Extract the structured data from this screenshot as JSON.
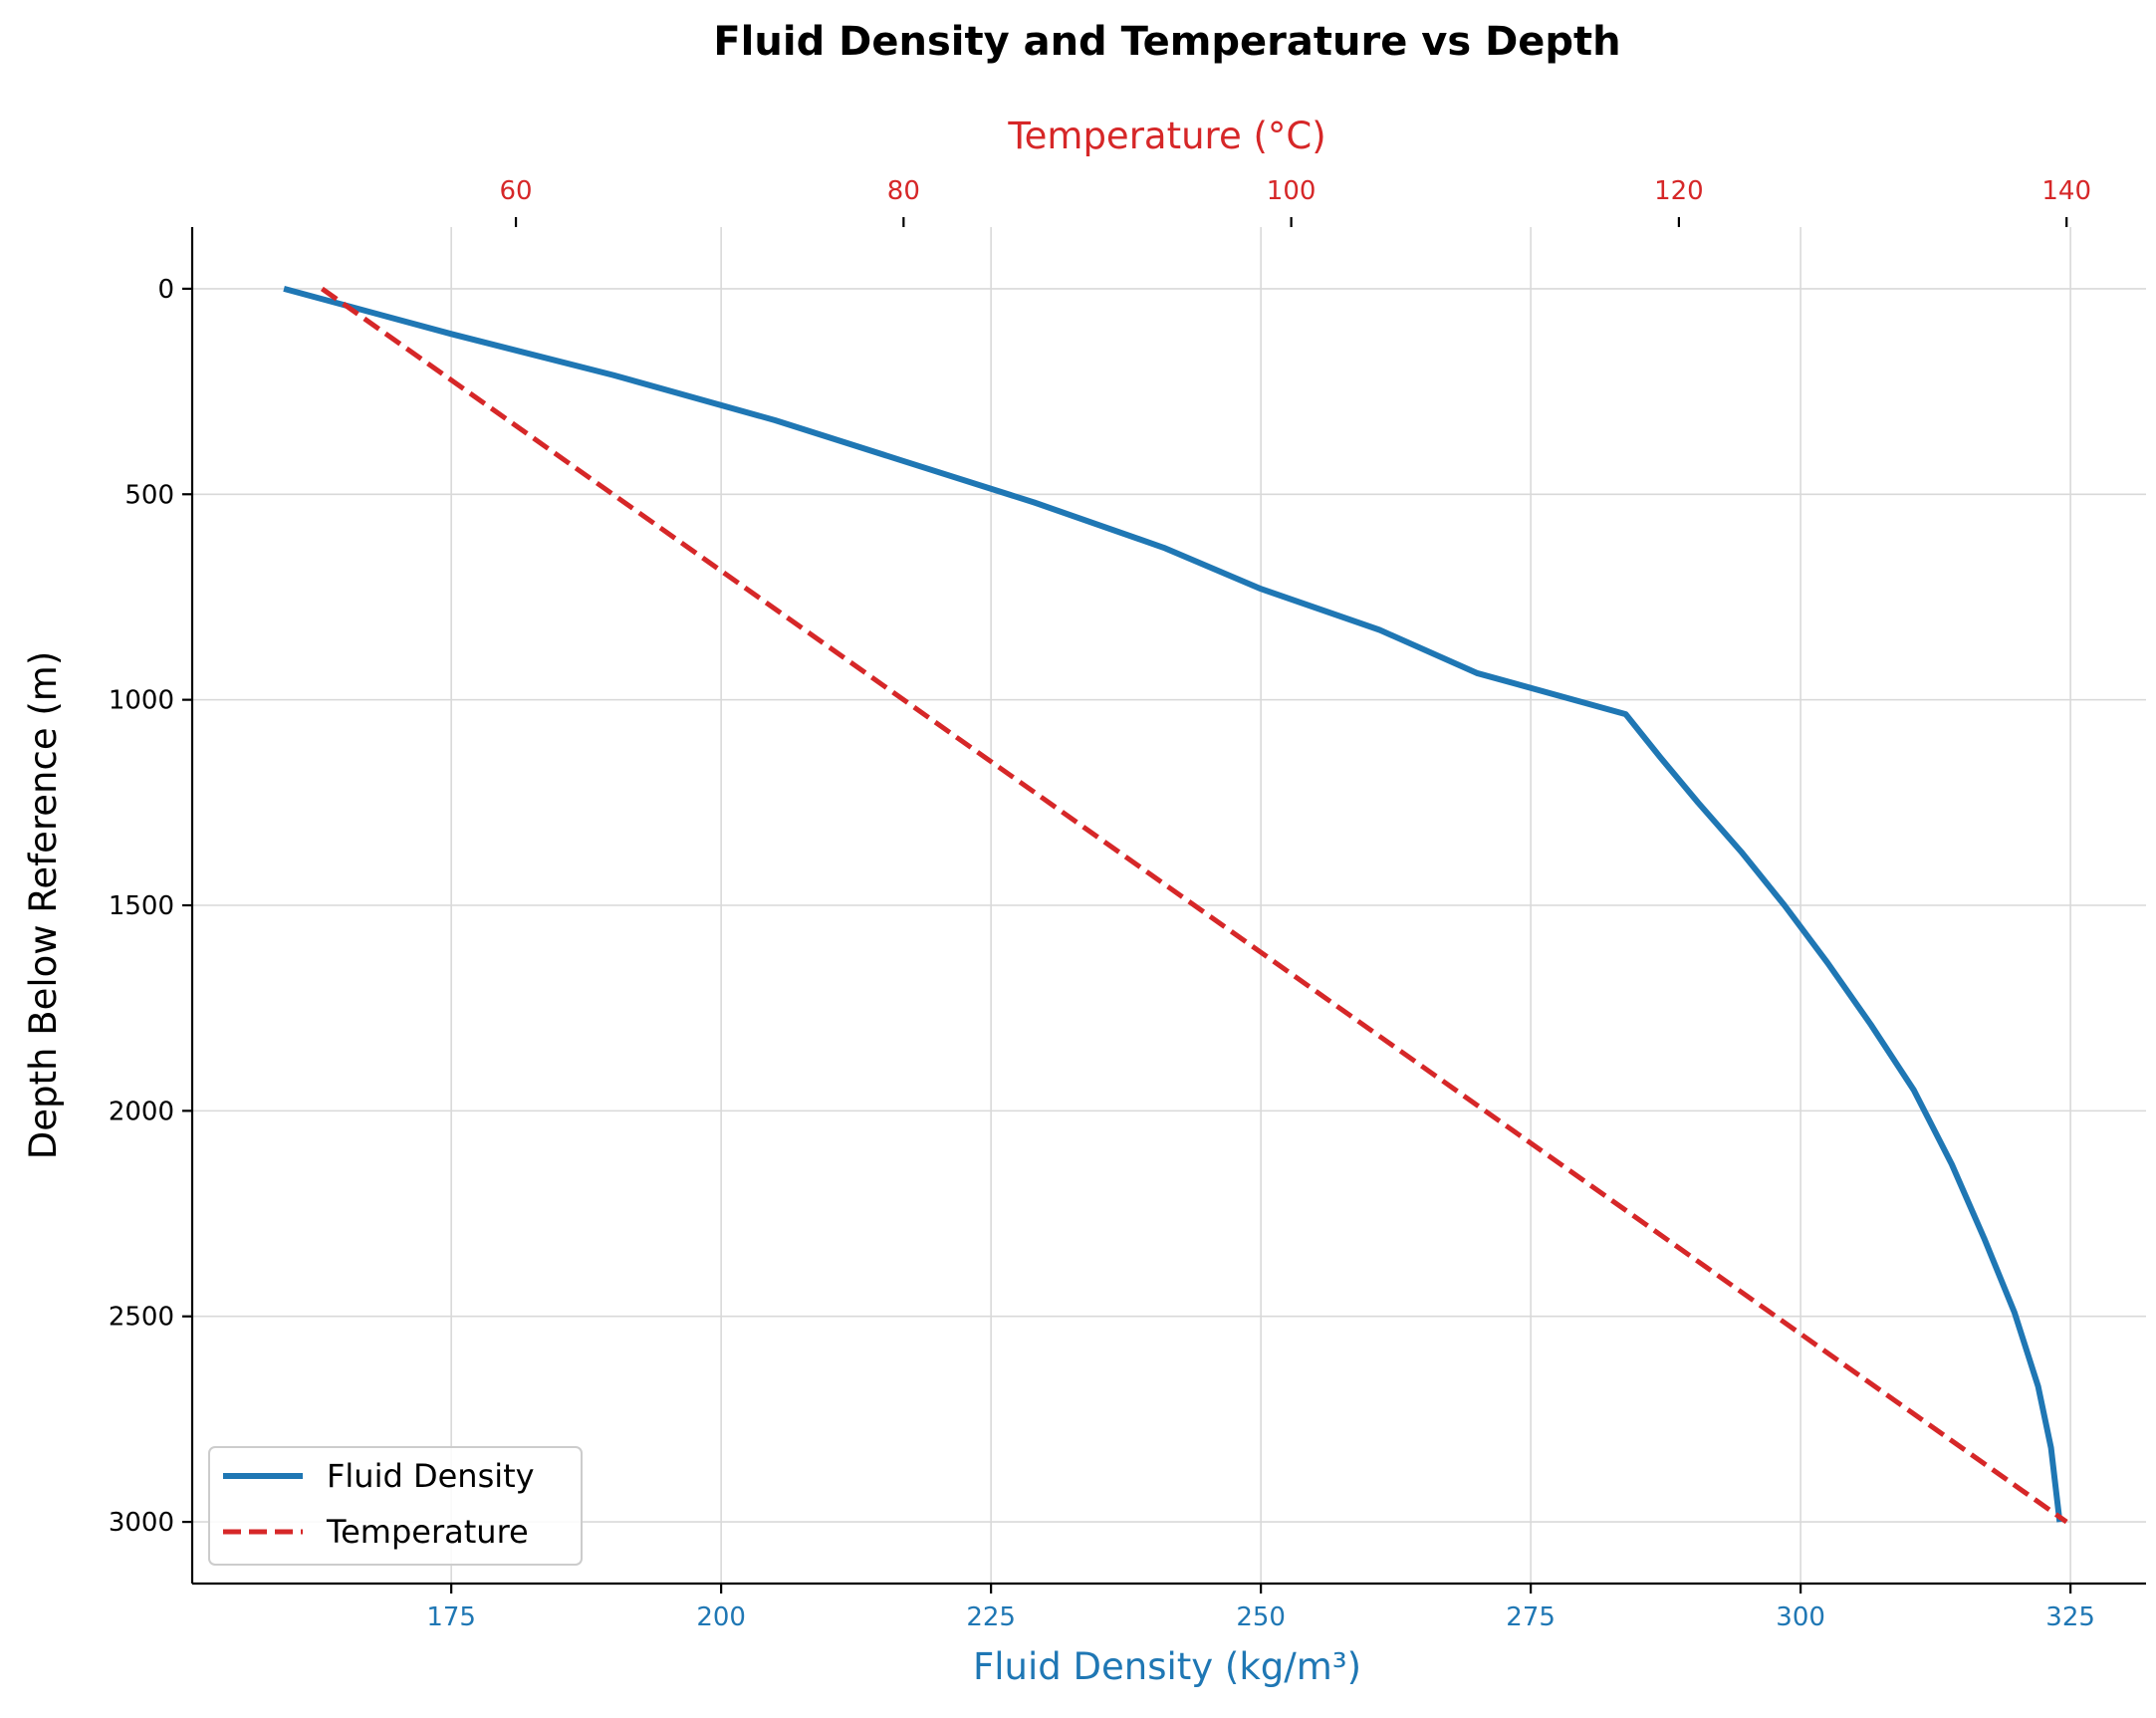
{
  "chart_data": {
    "type": "line",
    "title": "Fluid Density and Temperature vs Depth",
    "ylabel": "Depth Below Reference (m)",
    "xlabel_bottom": "Fluid Density (kg/m³)",
    "xlabel_top": "Temperature (°C)",
    "y_inverted": true,
    "ylim": [
      3150,
      -150
    ],
    "xlim_bottom": [
      151,
      332
    ],
    "xlim_top": [
      43.3,
      144.1
    ],
    "yticks": [
      0,
      500,
      1000,
      1500,
      2000,
      2500,
      3000
    ],
    "xticks_bottom": [
      175,
      200,
      225,
      250,
      275,
      300,
      325
    ],
    "xticks_top": [
      60,
      80,
      100,
      120,
      140
    ],
    "grid": true,
    "legend_position": "lower-left",
    "colors": {
      "density": "#1f77b4",
      "temperature": "#d62728"
    },
    "series": [
      {
        "name": "Fluid Density",
        "axis": "bottom",
        "style": "solid",
        "points": [
          [
            159.5,
            0
          ],
          [
            175,
            110
          ],
          [
            190,
            210
          ],
          [
            205,
            320
          ],
          [
            217,
            420
          ],
          [
            229,
            520
          ],
          [
            241,
            630
          ],
          [
            250,
            730
          ],
          [
            261,
            830
          ],
          [
            270,
            935
          ],
          [
            283.8,
            1035
          ],
          [
            287,
            1140
          ],
          [
            290.5,
            1250
          ],
          [
            294.5,
            1370
          ],
          [
            298.5,
            1500
          ],
          [
            302.5,
            1640
          ],
          [
            306.5,
            1790
          ],
          [
            310.5,
            1950
          ],
          [
            314,
            2130
          ],
          [
            317,
            2310
          ],
          [
            319.8,
            2490
          ],
          [
            322,
            2670
          ],
          [
            323.2,
            2820
          ],
          [
            324,
            3000
          ]
        ]
      },
      {
        "name": "Temperature",
        "axis": "top",
        "style": "dashed",
        "points": [
          [
            50,
            0
          ],
          [
            140,
            3000
          ]
        ]
      }
    ]
  }
}
